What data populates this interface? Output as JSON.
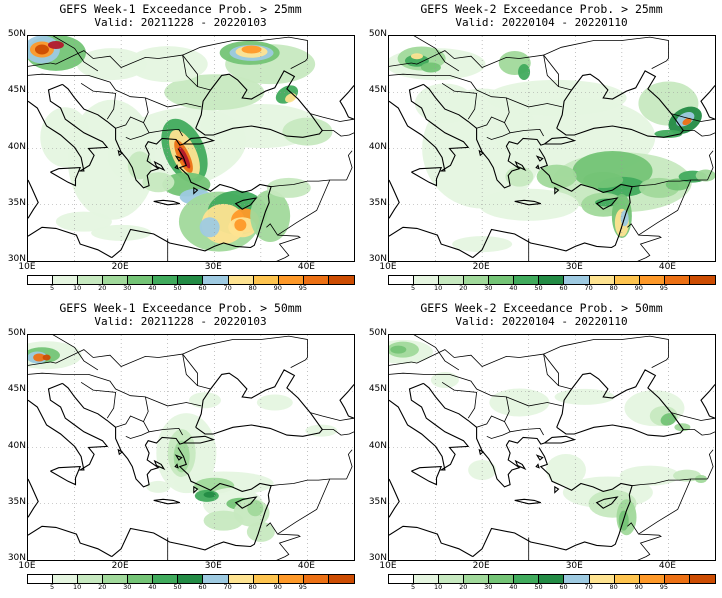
{
  "colors": {
    "levels": [
      "#ffffff",
      "#e5f5e0",
      "#c7e9c0",
      "#a1d99b",
      "#74c476",
      "#41ab5d",
      "#238b45",
      "#9ecae1",
      "#fee391",
      "#fec44f",
      "#fe9929",
      "#ec7014",
      "#cc4c02",
      "#b2182b"
    ],
    "land_lines": "#000000",
    "grid": "#999999"
  },
  "colorbar_labels": [
    "5",
    "10",
    "20",
    "30",
    "40",
    "50",
    "60",
    "70",
    "80",
    "90",
    "95"
  ],
  "axes": {
    "lat_labels": [
      "50N",
      "45N",
      "40N",
      "35N",
      "30N"
    ],
    "lon_labels": [
      "10E",
      "20E",
      "30E",
      "40E"
    ]
  },
  "panels": [
    {
      "title": "GEFS Week-1 Exceedance Prob. > 25mm",
      "valid": "Valid: 20211228 - 20220103",
      "week": 1,
      "threshold_mm": 25,
      "shading": "high"
    },
    {
      "title": "GEFS Week-2 Exceedance Prob. > 25mm",
      "valid": "Valid: 20220104 - 20220110",
      "week": 2,
      "threshold_mm": 25,
      "shading": "moderate"
    },
    {
      "title": "GEFS Week-1 Exceedance Prob. > 50mm",
      "valid": "Valid: 20211228 - 20220103",
      "week": 1,
      "threshold_mm": 50,
      "shading": "low"
    },
    {
      "title": "GEFS Week-2 Exceedance Prob. > 50mm",
      "valid": "Valid: 20220104 - 20220110",
      "week": 2,
      "threshold_mm": 50,
      "shading": "weak"
    }
  ]
}
